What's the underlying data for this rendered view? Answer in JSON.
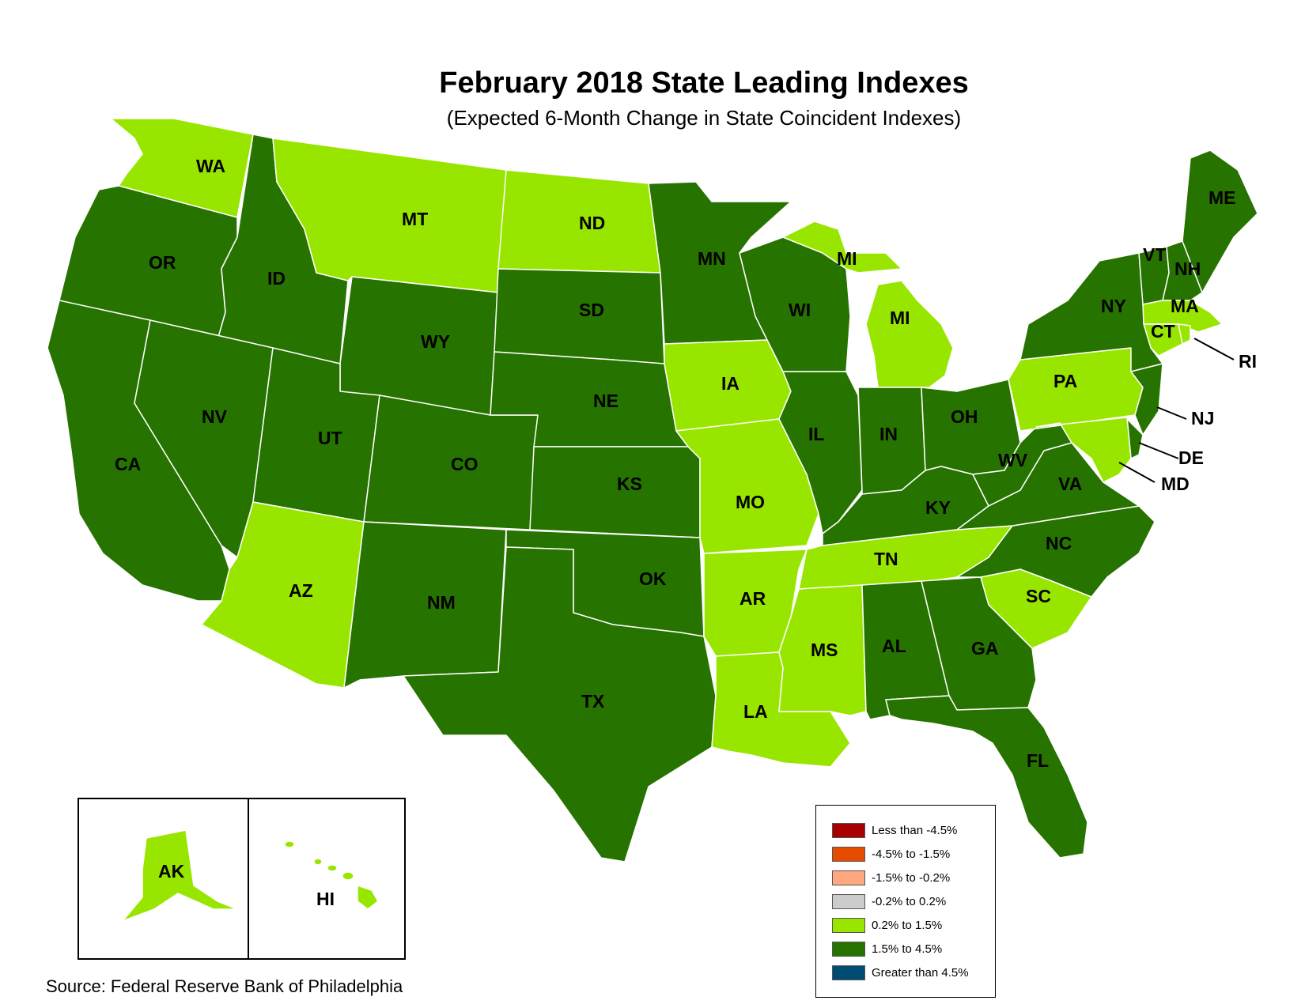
{
  "title": "February 2018 State Leading Indexes",
  "subtitle": "(Expected 6-Month Change in State Coincident Indexes)",
  "source": "Source: Federal Reserve Bank of Philadelphia",
  "colors": {
    "dark_green": "#267300",
    "light_green": "#98e600",
    "border": "#ffffff"
  },
  "legend": [
    {
      "label": "Less than -4.5%",
      "color": "#a80000"
    },
    {
      "label": "-4.5% to -1.5%",
      "color": "#e64c00"
    },
    {
      "label": "-1.5% to -0.2%",
      "color": "#ffa77f"
    },
    {
      "label": "-0.2% to 0.2%",
      "color": "#cccccc"
    },
    {
      "label": "0.2% to 1.5%",
      "color": "#98e600"
    },
    {
      "label": "1.5% to 4.5%",
      "color": "#267300"
    },
    {
      "label": "Greater than 4.5%",
      "color": "#004c73"
    }
  ],
  "states": {
    "WA": {
      "label": "WA",
      "category": "0.2% to 1.5%"
    },
    "OR": {
      "label": "OR",
      "category": "1.5% to 4.5%"
    },
    "CA": {
      "label": "CA",
      "category": "1.5% to 4.5%"
    },
    "ID": {
      "label": "ID",
      "category": "1.5% to 4.5%"
    },
    "NV": {
      "label": "NV",
      "category": "1.5% to 4.5%"
    },
    "MT": {
      "label": "MT",
      "category": "0.2% to 1.5%"
    },
    "WY": {
      "label": "WY",
      "category": "1.5% to 4.5%"
    },
    "UT": {
      "label": "UT",
      "category": "1.5% to 4.5%"
    },
    "AZ": {
      "label": "AZ",
      "category": "0.2% to 1.5%"
    },
    "CO": {
      "label": "CO",
      "category": "1.5% to 4.5%"
    },
    "NM": {
      "label": "NM",
      "category": "1.5% to 4.5%"
    },
    "ND": {
      "label": "ND",
      "category": "0.2% to 1.5%"
    },
    "SD": {
      "label": "SD",
      "category": "1.5% to 4.5%"
    },
    "NE": {
      "label": "NE",
      "category": "1.5% to 4.5%"
    },
    "KS": {
      "label": "KS",
      "category": "1.5% to 4.5%"
    },
    "OK": {
      "label": "OK",
      "category": "1.5% to 4.5%"
    },
    "TX": {
      "label": "TX",
      "category": "1.5% to 4.5%"
    },
    "MN": {
      "label": "MN",
      "category": "1.5% to 4.5%"
    },
    "IA": {
      "label": "IA",
      "category": "0.2% to 1.5%"
    },
    "MO": {
      "label": "MO",
      "category": "0.2% to 1.5%"
    },
    "AR": {
      "label": "AR",
      "category": "0.2% to 1.5%"
    },
    "LA": {
      "label": "LA",
      "category": "0.2% to 1.5%"
    },
    "WI": {
      "label": "WI",
      "category": "1.5% to 4.5%"
    },
    "IL": {
      "label": "IL",
      "category": "1.5% to 4.5%"
    },
    "MI_UP": {
      "label": "MI",
      "category": "0.2% to 1.5%"
    },
    "MI": {
      "label": "MI",
      "category": "0.2% to 1.5%"
    },
    "IN": {
      "label": "IN",
      "category": "1.5% to 4.5%"
    },
    "OH": {
      "label": "OH",
      "category": "1.5% to 4.5%"
    },
    "KY": {
      "label": "KY",
      "category": "1.5% to 4.5%"
    },
    "TN": {
      "label": "TN",
      "category": "0.2% to 1.5%"
    },
    "MS": {
      "label": "MS",
      "category": "0.2% to 1.5%"
    },
    "AL": {
      "label": "AL",
      "category": "1.5% to 4.5%"
    },
    "GA": {
      "label": "GA",
      "category": "1.5% to 4.5%"
    },
    "FL": {
      "label": "FL",
      "category": "1.5% to 4.5%"
    },
    "SC": {
      "label": "SC",
      "category": "0.2% to 1.5%"
    },
    "NC": {
      "label": "NC",
      "category": "1.5% to 4.5%"
    },
    "VA": {
      "label": "VA",
      "category": "1.5% to 4.5%"
    },
    "WV": {
      "label": "WV",
      "category": "1.5% to 4.5%"
    },
    "PA": {
      "label": "PA",
      "category": "0.2% to 1.5%"
    },
    "NY": {
      "label": "NY",
      "category": "1.5% to 4.5%"
    },
    "VT": {
      "label": "VT",
      "category": "1.5% to 4.5%"
    },
    "NH": {
      "label": "NH",
      "category": "1.5% to 4.5%"
    },
    "ME": {
      "label": "ME",
      "category": "1.5% to 4.5%"
    },
    "MA": {
      "label": "MA",
      "category": "0.2% to 1.5%"
    },
    "CT": {
      "label": "CT",
      "category": "0.2% to 1.5%"
    },
    "RI": {
      "label": "RI",
      "category": "0.2% to 1.5%"
    },
    "NJ": {
      "label": "NJ",
      "category": "1.5% to 4.5%"
    },
    "DE": {
      "label": "DE",
      "category": "1.5% to 4.5%"
    },
    "MD": {
      "label": "MD",
      "category": "0.2% to 1.5%"
    },
    "AK": {
      "label": "AK",
      "category": "0.2% to 1.5%"
    },
    "HI": {
      "label": "HI",
      "category": "0.2% to 1.5%"
    }
  }
}
